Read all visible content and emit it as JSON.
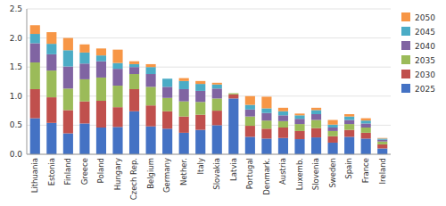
{
  "chart_data": {
    "type": "bar",
    "stacked": true,
    "categories": [
      "Lithuania",
      "Estonia",
      "Finland",
      "Greece",
      "Poland",
      "Hungary",
      "Czech Rep.",
      "Belgium",
      "Germany",
      "Nether.",
      "Italy",
      "Slovakia",
      "Latvia",
      "Portugal",
      "Denmark.",
      "Austria",
      "Luxemb.",
      "Slovenia",
      "Sweden",
      "Spain",
      "France",
      "Ireland"
    ],
    "series": [
      {
        "name": "2025",
        "color": "#4472C4",
        "values": [
          0.62,
          0.54,
          0.36,
          0.53,
          0.46,
          0.47,
          0.74,
          0.48,
          0.44,
          0.37,
          0.42,
          0.5,
          0.96,
          0.3,
          0.27,
          0.28,
          0.26,
          0.29,
          0.2,
          0.3,
          0.27,
          0.1
        ]
      },
      {
        "name": "2030",
        "color": "#C0504D",
        "values": [
          0.5,
          0.44,
          0.4,
          0.38,
          0.46,
          0.34,
          0.38,
          0.36,
          0.3,
          0.28,
          0.26,
          0.25,
          0.07,
          0.19,
          0.17,
          0.18,
          0.14,
          0.16,
          0.11,
          0.12,
          0.1,
          0.07
        ]
      },
      {
        "name": "2035",
        "color": "#9BBB59",
        "values": [
          0.46,
          0.46,
          0.37,
          0.38,
          0.4,
          0.37,
          0.26,
          0.32,
          0.23,
          0.26,
          0.22,
          0.21,
          0.02,
          0.16,
          0.14,
          0.11,
          0.12,
          0.14,
          0.09,
          0.1,
          0.09,
          0.05
        ]
      },
      {
        "name": "2040",
        "color": "#8064A2",
        "values": [
          0.33,
          0.28,
          0.38,
          0.27,
          0.28,
          0.29,
          0.12,
          0.22,
          0.19,
          0.21,
          0.19,
          0.17,
          0.0,
          0.12,
          0.13,
          0.1,
          0.09,
          0.1,
          0.06,
          0.07,
          0.07,
          0.03
        ]
      },
      {
        "name": "2045",
        "color": "#4BACC6",
        "values": [
          0.16,
          0.18,
          0.28,
          0.19,
          0.1,
          0.1,
          0.05,
          0.12,
          0.14,
          0.14,
          0.12,
          0.07,
          0.0,
          0.08,
          0.08,
          0.07,
          0.06,
          0.07,
          0.05,
          0.06,
          0.05,
          0.02
        ]
      },
      {
        "name": "2050",
        "color": "#F79646",
        "values": [
          0.15,
          0.2,
          0.21,
          0.14,
          0.12,
          0.23,
          0.05,
          0.05,
          0.0,
          0.05,
          0.05,
          0.03,
          0.0,
          0.15,
          0.2,
          0.06,
          0.03,
          0.04,
          0.08,
          0.04,
          0.04,
          0.01
        ]
      }
    ],
    "ylim": [
      0,
      2.5
    ],
    "yticks": [
      {
        "value": 0,
        "label": "0.0"
      },
      0.5,
      {
        "value": 1.0,
        "label": "1.0"
      },
      {
        "value": 1.5,
        "label": "1.5"
      },
      {
        "value": 2.0,
        "label": "2.0"
      },
      {
        "value": 2.5,
        "label": "2.5"
      }
    ],
    "grid": true,
    "legend": "right"
  }
}
